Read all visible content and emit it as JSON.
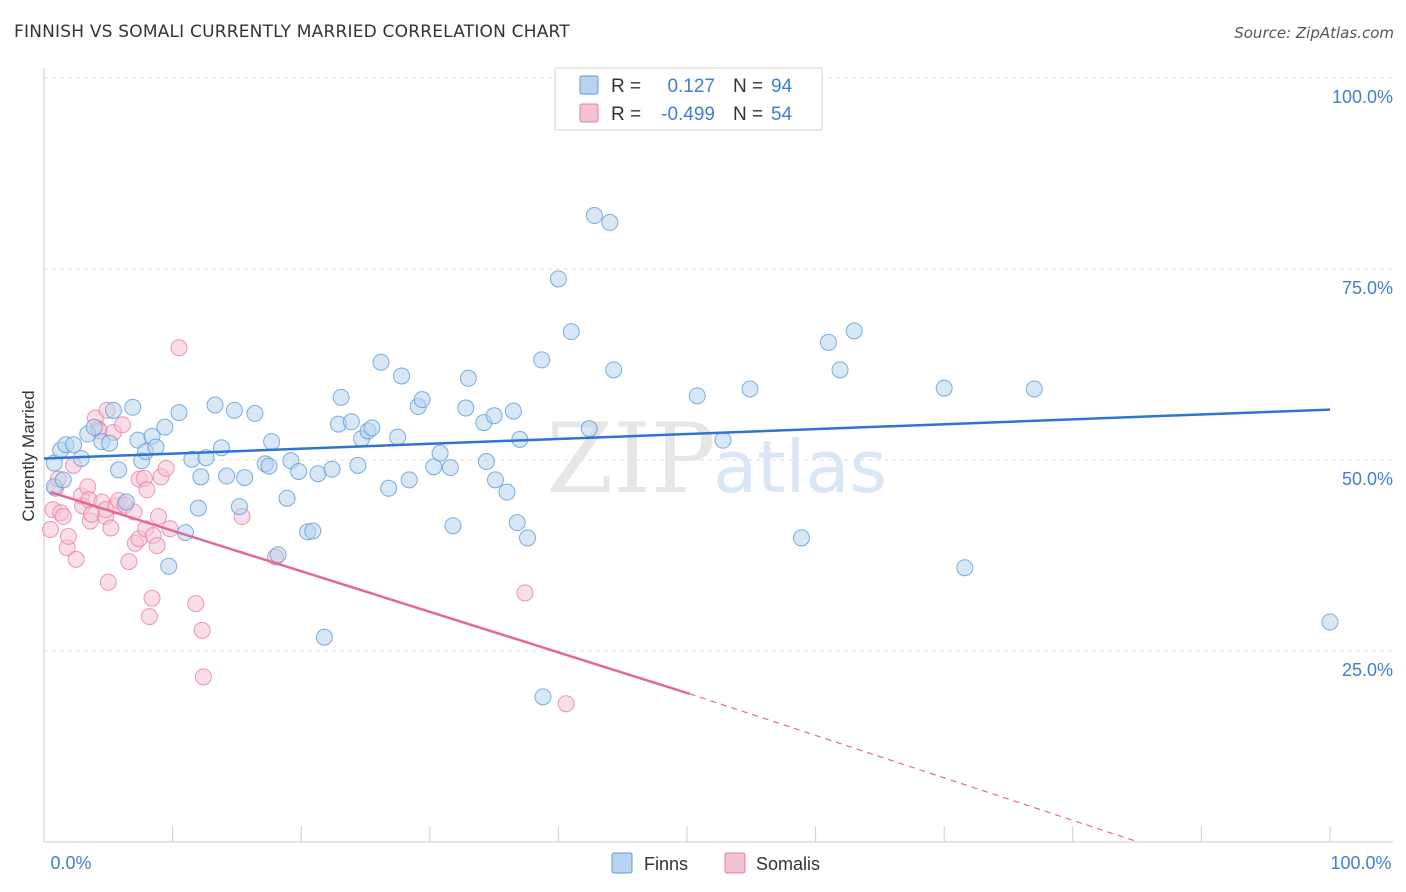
{
  "header": {
    "title": "FINNISH VS SOMALI CURRENTLY MARRIED CORRELATION CHART",
    "source": "Source: ZipAtlas.com"
  },
  "legend_box": {
    "rows": [
      {
        "r_label": "R =",
        "r_value": "0.127",
        "n_label": "N =",
        "n_value": "94"
      },
      {
        "r_label": "R =",
        "r_value": "-0.499",
        "n_label": "N =",
        "n_value": "54"
      }
    ]
  },
  "watermark": {
    "zip": "ZIP",
    "atlas": "atlas"
  },
  "colors": {
    "finns": "#5b9bd5",
    "finns_fill": "#b8d3ef",
    "finns_line": "#2f74d0",
    "somalis": "#e87ea1",
    "somalis_fill": "#f5c2d4",
    "somalis_line": "#e0699a",
    "value_text": "#3f7fd1",
    "grid": "#dddddd"
  },
  "chart_data": {
    "type": "scatter",
    "title": "FINNISH VS SOMALI CURRENTLY MARRIED CORRELATION CHART",
    "xlabel": "",
    "ylabel": "Currently Married",
    "xlim": [
      0,
      100
    ],
    "ylim": [
      0,
      100
    ],
    "x_tick_labels": [
      "0.0%",
      "100.0%"
    ],
    "y_tick_labels": [
      "100.0%",
      "75.0%",
      "50.0%",
      "25.0%"
    ],
    "y_ticks": [
      100,
      75,
      50,
      25
    ],
    "grid": true,
    "legend": {
      "placement": "bottom",
      "entries": [
        "Finns",
        "Somalis"
      ]
    },
    "series": [
      {
        "name": "Finns",
        "r": 0.127,
        "n": 94,
        "trend": {
          "x": [
            0,
            100
          ],
          "y": [
            50.2,
            56.6
          ]
        },
        "points": [
          [
            0.8,
            46.5
          ],
          [
            0.8,
            49.6
          ],
          [
            1.3,
            51.3
          ],
          [
            1.5,
            47.4
          ],
          [
            1.7,
            52.0
          ],
          [
            2.3,
            52.0
          ],
          [
            2.9,
            50.2
          ],
          [
            3.4,
            53.4
          ],
          [
            3.9,
            54.3
          ],
          [
            4.5,
            52.4
          ],
          [
            5.1,
            52.2
          ],
          [
            5.4,
            56.5
          ],
          [
            5.8,
            48.7
          ],
          [
            6.4,
            44.5
          ],
          [
            6.9,
            56.9
          ],
          [
            7.3,
            52.6
          ],
          [
            7.6,
            49.9
          ],
          [
            7.9,
            51.1
          ],
          [
            8.4,
            53.1
          ],
          [
            8.7,
            51.7
          ],
          [
            9.4,
            54.3
          ],
          [
            9.7,
            36.1
          ],
          [
            10.5,
            56.2
          ],
          [
            11.0,
            40.5
          ],
          [
            11.5,
            50.1
          ],
          [
            12.0,
            43.7
          ],
          [
            12.2,
            47.8
          ],
          [
            12.6,
            50.3
          ],
          [
            13.3,
            57.2
          ],
          [
            13.8,
            51.6
          ],
          [
            14.2,
            47.9
          ],
          [
            14.8,
            56.5
          ],
          [
            15.2,
            43.9
          ],
          [
            15.6,
            47.7
          ],
          [
            16.4,
            56.1
          ],
          [
            17.2,
            49.5
          ],
          [
            17.5,
            49.2
          ],
          [
            17.7,
            52.4
          ],
          [
            18.2,
            37.6
          ],
          [
            18.9,
            45.0
          ],
          [
            19.2,
            49.9
          ],
          [
            19.8,
            48.5
          ],
          [
            20.5,
            40.6
          ],
          [
            20.9,
            40.7
          ],
          [
            21.3,
            48.2
          ],
          [
            21.8,
            26.8
          ],
          [
            22.4,
            48.8
          ],
          [
            22.9,
            54.7
          ],
          [
            23.1,
            58.2
          ],
          [
            23.9,
            55.0
          ],
          [
            24.4,
            49.3
          ],
          [
            24.7,
            52.8
          ],
          [
            25.2,
            53.8
          ],
          [
            25.5,
            54.2
          ],
          [
            26.2,
            62.8
          ],
          [
            26.8,
            46.3
          ],
          [
            27.5,
            53.0
          ],
          [
            27.8,
            61.0
          ],
          [
            28.4,
            47.4
          ],
          [
            29.1,
            57.0
          ],
          [
            29.4,
            57.9
          ],
          [
            30.3,
            49.1
          ],
          [
            30.8,
            50.9
          ],
          [
            31.6,
            49.0
          ],
          [
            31.8,
            41.4
          ],
          [
            32.8,
            56.8
          ],
          [
            33.0,
            60.7
          ],
          [
            34.2,
            54.9
          ],
          [
            34.4,
            49.8
          ],
          [
            35.0,
            55.8
          ],
          [
            35.1,
            47.4
          ],
          [
            36.0,
            45.8
          ],
          [
            36.5,
            56.4
          ],
          [
            36.8,
            41.8
          ],
          [
            37.0,
            52.7
          ],
          [
            37.6,
            39.8
          ],
          [
            38.7,
            63.1
          ],
          [
            38.8,
            19.0
          ],
          [
            40.0,
            73.7
          ],
          [
            41.0,
            66.8
          ],
          [
            42.4,
            54.1
          ],
          [
            42.8,
            82.0
          ],
          [
            44.0,
            81.1
          ],
          [
            44.3,
            61.8
          ],
          [
            50.8,
            58.4
          ],
          [
            52.8,
            52.6
          ],
          [
            54.9,
            59.3
          ],
          [
            58.9,
            39.8
          ],
          [
            61.0,
            65.4
          ],
          [
            61.9,
            61.8
          ],
          [
            63.0,
            66.9
          ],
          [
            70.0,
            59.4
          ],
          [
            71.6,
            35.9
          ],
          [
            77.0,
            59.3
          ],
          [
            100.0,
            28.8
          ]
        ]
      },
      {
        "name": "Somalis",
        "r": -0.499,
        "n": 54,
        "trend": {
          "x": [
            0.5,
            50.2
          ],
          "y": [
            45.8,
            19.4
          ],
          "dashed_to": {
            "x": 85.1,
            "y": 0.0
          }
        },
        "points": [
          [
            0.5,
            40.9
          ],
          [
            0.7,
            43.5
          ],
          [
            0.9,
            46.3
          ],
          [
            1.1,
            47.5
          ],
          [
            1.3,
            43.1
          ],
          [
            1.5,
            42.6
          ],
          [
            1.8,
            38.5
          ],
          [
            1.9,
            40.0
          ],
          [
            2.3,
            49.3
          ],
          [
            2.5,
            37.0
          ],
          [
            2.9,
            45.3
          ],
          [
            3.0,
            44.0
          ],
          [
            3.4,
            46.5
          ],
          [
            3.5,
            44.8
          ],
          [
            3.6,
            42.0
          ],
          [
            3.7,
            42.9
          ],
          [
            4.0,
            55.5
          ],
          [
            4.2,
            54.1
          ],
          [
            4.3,
            53.8
          ],
          [
            4.5,
            44.5
          ],
          [
            4.8,
            42.6
          ],
          [
            4.8,
            43.5
          ],
          [
            4.9,
            56.5
          ],
          [
            5.0,
            34.0
          ],
          [
            5.2,
            41.1
          ],
          [
            5.4,
            53.6
          ],
          [
            5.6,
            44.0
          ],
          [
            5.8,
            44.7
          ],
          [
            6.1,
            54.6
          ],
          [
            6.3,
            44.1
          ],
          [
            6.6,
            36.7
          ],
          [
            7.0,
            43.2
          ],
          [
            7.1,
            39.1
          ],
          [
            7.4,
            39.7
          ],
          [
            7.4,
            47.5
          ],
          [
            7.8,
            47.6
          ],
          [
            7.9,
            41.0
          ],
          [
            8.0,
            46.1
          ],
          [
            8.2,
            29.5
          ],
          [
            8.4,
            31.9
          ],
          [
            8.5,
            40.1
          ],
          [
            8.8,
            38.8
          ],
          [
            8.9,
            42.6
          ],
          [
            9.1,
            47.8
          ],
          [
            9.5,
            48.9
          ],
          [
            9.8,
            41.0
          ],
          [
            10.5,
            64.7
          ],
          [
            11.8,
            31.2
          ],
          [
            12.3,
            27.7
          ],
          [
            12.4,
            21.6
          ],
          [
            15.4,
            42.6
          ],
          [
            18.0,
            37.3
          ],
          [
            37.4,
            32.6
          ],
          [
            40.6,
            18.1
          ]
        ]
      }
    ]
  }
}
